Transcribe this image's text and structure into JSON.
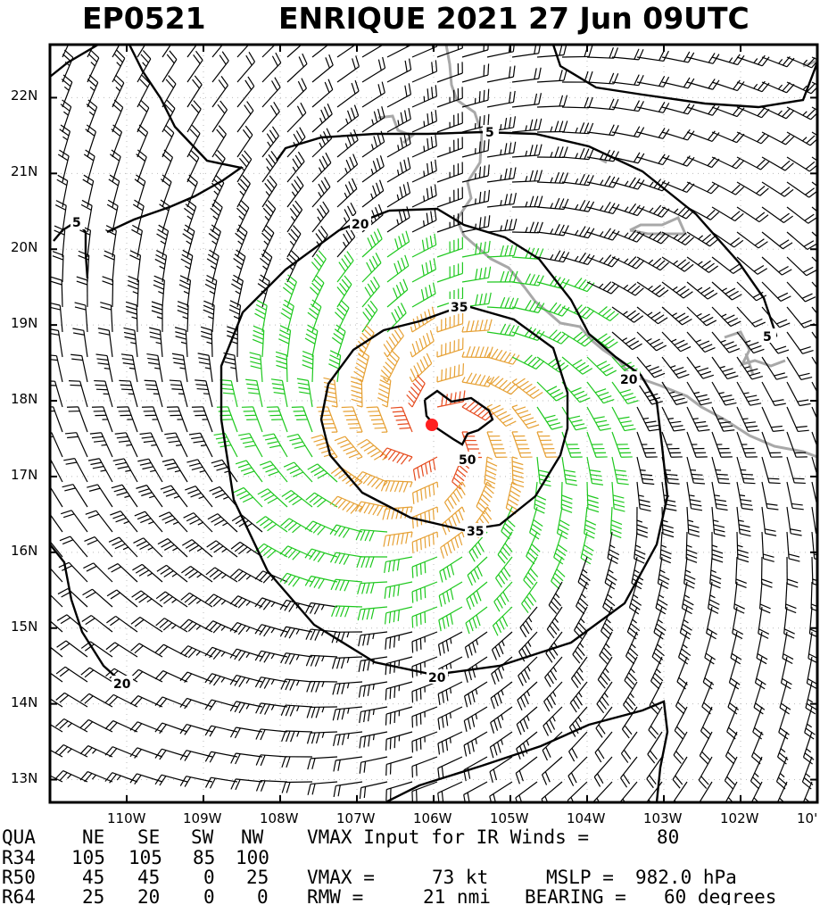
{
  "title": {
    "storm_id": "EP0521",
    "storm_info": "ENRIQUE 2021 27 Jun 09UTC"
  },
  "map": {
    "lat_labels": [
      "13N",
      "14N",
      "15N",
      "16N",
      "17N",
      "18N",
      "19N",
      "20N",
      "21N",
      "22N"
    ],
    "lon_labels": [
      "110W",
      "109W",
      "108W",
      "107W",
      "106W",
      "105W",
      "104W",
      "103W",
      "102W",
      "10'"
    ],
    "lon_range": [
      -111.0,
      -101.0
    ],
    "lat_range": [
      12.7,
      22.7
    ],
    "storm_center": {
      "lon": -106.0,
      "lat": 17.6
    },
    "contour_levels": [
      "5",
      "5",
      "20",
      "20",
      "20",
      "35",
      "35",
      "50"
    ],
    "wind_colors": {
      "below_34kt": "#000000",
      "34_to_49kt": "#1ec81e",
      "50_to_63kt": "#e6a033",
      "64kt_plus": "#e64b1e"
    },
    "center_color": "#ff2020",
    "coastline_color": "#a8a8a8"
  },
  "table": {
    "header": [
      "QUA",
      "NE",
      "SE",
      "SW",
      "NW"
    ],
    "rows": [
      [
        "R34",
        "105",
        "105",
        "85",
        "100"
      ],
      [
        "R50",
        "45",
        "45",
        "0",
        "25"
      ],
      [
        "R64",
        "25",
        "20",
        "0",
        "0"
      ]
    ]
  },
  "info": {
    "vmax_input_label": "VMAX Input for IR Winds =",
    "vmax_input_value": "80",
    "vmax_label": "VMAX =",
    "vmax_value": "73 kt",
    "mslp_label": "MSLP =",
    "mslp_value": "982.0 hPa",
    "rmw_label": "RMW =",
    "rmw_value": "21 nmi",
    "bearing_label": "BEARING =",
    "bearing_value": "60 degrees"
  }
}
